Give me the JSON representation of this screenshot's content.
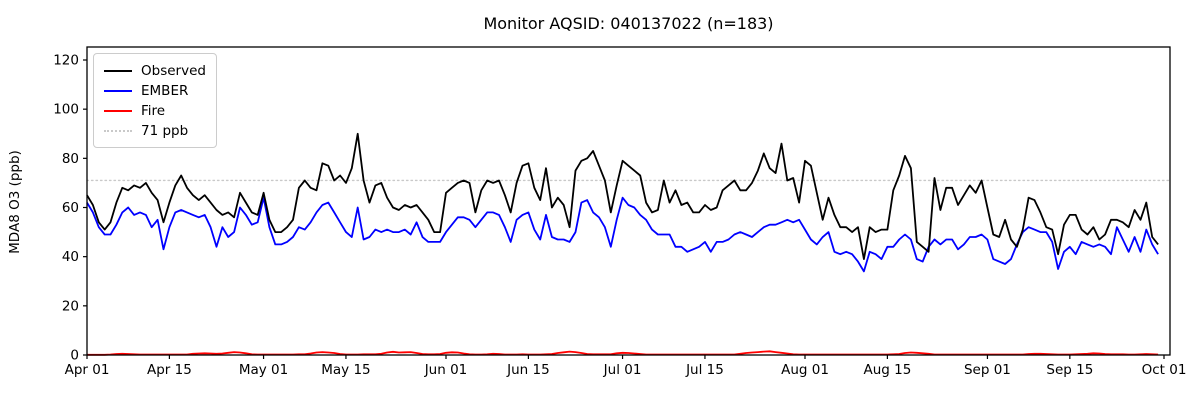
{
  "chart_data": {
    "type": "line",
    "title": "Monitor AQSID: 040137022 (n=183)",
    "xlabel": "",
    "ylabel": "MDA8 O3 (ppb)",
    "x_axis": "Daily values, Apr 01 through Sep 30 (day index 0-182 from Apr 01)",
    "n_points": 183,
    "ylim": [
      0,
      125
    ],
    "xlim_days": [
      0,
      184
    ],
    "grid": false,
    "legend_position": "upper left",
    "y_ticks": [
      0,
      20,
      40,
      60,
      80,
      100,
      120
    ],
    "x_ticks": [
      {
        "day": 0,
        "label": "Apr 01"
      },
      {
        "day": 14,
        "label": "Apr 15"
      },
      {
        "day": 30,
        "label": "May 01"
      },
      {
        "day": 44,
        "label": "May 15"
      },
      {
        "day": 61,
        "label": "Jun 01"
      },
      {
        "day": 75,
        "label": "Jun 15"
      },
      {
        "day": 91,
        "label": "Jul 01"
      },
      {
        "day": 105,
        "label": "Jul 15"
      },
      {
        "day": 122,
        "label": "Aug 01"
      },
      {
        "day": 136,
        "label": "Aug 15"
      },
      {
        "day": 153,
        "label": "Sep 01"
      },
      {
        "day": 167,
        "label": "Sep 15"
      },
      {
        "day": 183,
        "label": "Oct 01"
      }
    ],
    "threshold": {
      "value": 71,
      "label": "71 ppb",
      "color": "#c9c9c9",
      "style": "dotted"
    },
    "legend": [
      {
        "label": "Observed",
        "color": "#000000",
        "style": "solid"
      },
      {
        "label": "EMBER",
        "color": "#0000ff",
        "style": "solid"
      },
      {
        "label": "Fire",
        "color": "#ff0000",
        "style": "solid"
      },
      {
        "label": "71 ppb",
        "color": "#c9c9c9",
        "style": "dotted"
      }
    ],
    "series": [
      {
        "name": "Observed",
        "color": "#000000",
        "values": [
          65,
          61,
          54,
          51,
          54,
          62,
          68,
          67,
          69,
          68,
          70,
          66,
          63,
          54,
          62,
          69,
          73,
          68,
          65,
          63,
          65,
          62,
          59,
          57,
          58,
          56,
          66,
          62,
          58,
          57,
          66,
          55,
          50,
          50,
          52,
          55,
          68,
          71,
          68,
          67,
          78,
          77,
          71,
          73,
          70,
          76,
          90,
          71,
          62,
          69,
          70,
          64,
          60,
          59,
          61,
          60,
          61,
          58,
          55,
          50,
          50,
          66,
          68,
          70,
          71,
          70,
          58,
          67,
          71,
          70,
          71,
          65,
          58,
          70,
          77,
          78,
          68,
          63,
          76,
          60,
          64,
          61,
          52,
          75,
          79,
          80,
          83,
          77,
          71,
          58,
          69,
          79,
          77,
          75,
          73,
          62,
          58,
          59,
          71,
          62,
          67,
          61,
          62,
          58,
          58,
          61,
          59,
          60,
          67,
          69,
          71,
          67,
          67,
          70,
          75,
          82,
          76,
          74,
          86,
          71,
          72,
          62,
          79,
          77,
          66,
          55,
          64,
          57,
          52,
          52,
          50,
          52,
          39,
          52,
          50,
          51,
          51,
          67,
          73,
          81,
          76,
          46,
          44,
          42,
          72,
          59,
          68,
          68,
          61,
          65,
          69,
          66,
          71,
          60,
          49,
          48,
          55,
          47,
          44,
          51,
          64,
          63,
          58,
          52,
          51,
          41,
          53,
          57,
          57,
          51,
          49,
          52,
          47,
          49,
          55,
          55,
          54,
          52,
          59,
          55,
          62,
          48,
          45
        ]
      },
      {
        "name": "EMBER",
        "color": "#0000ff",
        "values": [
          62,
          58,
          52,
          49,
          49,
          53,
          58,
          60,
          57,
          58,
          57,
          52,
          55,
          43,
          52,
          58,
          59,
          58,
          57,
          56,
          57,
          52,
          44,
          52,
          48,
          50,
          60,
          57,
          53,
          54,
          64,
          52,
          45,
          45,
          46,
          48,
          52,
          51,
          54,
          58,
          61,
          62,
          58,
          54,
          50,
          48,
          60,
          47,
          48,
          51,
          50,
          51,
          50,
          50,
          51,
          49,
          54,
          48,
          46,
          46,
          46,
          50,
          53,
          56,
          56,
          55,
          52,
          55,
          58,
          58,
          57,
          52,
          46,
          55,
          57,
          58,
          51,
          47,
          57,
          48,
          47,
          47,
          46,
          50,
          62,
          63,
          58,
          56,
          52,
          44,
          55,
          64,
          61,
          60,
          57,
          55,
          51,
          49,
          49,
          49,
          44,
          44,
          42,
          43,
          44,
          46,
          42,
          46,
          46,
          47,
          49,
          50,
          49,
          48,
          50,
          52,
          53,
          53,
          54,
          55,
          54,
          55,
          51,
          47,
          45,
          48,
          50,
          42,
          41,
          42,
          41,
          38,
          34,
          42,
          41,
          39,
          44,
          44,
          47,
          49,
          47,
          39,
          38,
          44,
          47,
          45,
          47,
          47,
          43,
          45,
          48,
          48,
          49,
          47,
          39,
          38,
          37,
          39,
          45,
          50,
          52,
          51,
          50,
          50,
          46,
          35,
          42,
          44,
          41,
          46,
          45,
          44,
          45,
          44,
          41,
          52,
          47,
          42,
          48,
          42,
          51,
          45,
          41
        ]
      },
      {
        "name": "Fire",
        "color": "#ff0000",
        "values": [
          0.1,
          0.1,
          0.1,
          0.1,
          0.2,
          0.4,
          0.5,
          0.4,
          0.3,
          0.2,
          0.2,
          0.2,
          0.2,
          0.2,
          0.2,
          0.2,
          0.2,
          0.2,
          0.5,
          0.6,
          0.7,
          0.6,
          0.5,
          0.6,
          0.9,
          1.2,
          1.0,
          0.7,
          0.3,
          0.2,
          0.2,
          0.2,
          0.2,
          0.2,
          0.2,
          0.2,
          0.3,
          0.3,
          0.6,
          1.0,
          1.2,
          1.0,
          0.8,
          0.4,
          0.2,
          0.2,
          0.2,
          0.3,
          0.3,
          0.3,
          0.5,
          1.0,
          1.3,
          1.0,
          1.1,
          1.2,
          0.8,
          0.4,
          0.3,
          0.3,
          0.4,
          0.9,
          1.1,
          1.0,
          0.6,
          0.3,
          0.2,
          0.2,
          0.3,
          0.5,
          0.4,
          0.2,
          0.2,
          0.2,
          0.3,
          0.2,
          0.2,
          0.2,
          0.3,
          0.4,
          0.8,
          1.1,
          1.4,
          1.2,
          0.8,
          0.4,
          0.3,
          0.3,
          0.3,
          0.3,
          0.7,
          0.9,
          0.8,
          0.6,
          0.4,
          0.2,
          0.2,
          0.2,
          0.2,
          0.2,
          0.2,
          0.2,
          0.2,
          0.2,
          0.2,
          0.2,
          0.2,
          0.2,
          0.2,
          0.2,
          0.2,
          0.5,
          0.8,
          1.0,
          1.2,
          1.4,
          1.5,
          1.2,
          0.9,
          0.6,
          0.3,
          0.2,
          0.2,
          0.2,
          0.2,
          0.2,
          0.2,
          0.2,
          0.2,
          0.2,
          0.2,
          0.2,
          0.2,
          0.2,
          0.2,
          0.2,
          0.2,
          0.3,
          0.4,
          0.8,
          1.0,
          0.9,
          0.7,
          0.5,
          0.2,
          0.2,
          0.2,
          0.2,
          0.2,
          0.2,
          0.2,
          0.2,
          0.2,
          0.2,
          0.2,
          0.2,
          0.2,
          0.2,
          0.2,
          0.2,
          0.4,
          0.5,
          0.5,
          0.4,
          0.3,
          0.2,
          0.2,
          0.2,
          0.3,
          0.4,
          0.5,
          0.7,
          0.6,
          0.4,
          0.3,
          0.3,
          0.3,
          0.2,
          0.2,
          0.3,
          0.4,
          0.3,
          0.2
        ]
      }
    ]
  }
}
